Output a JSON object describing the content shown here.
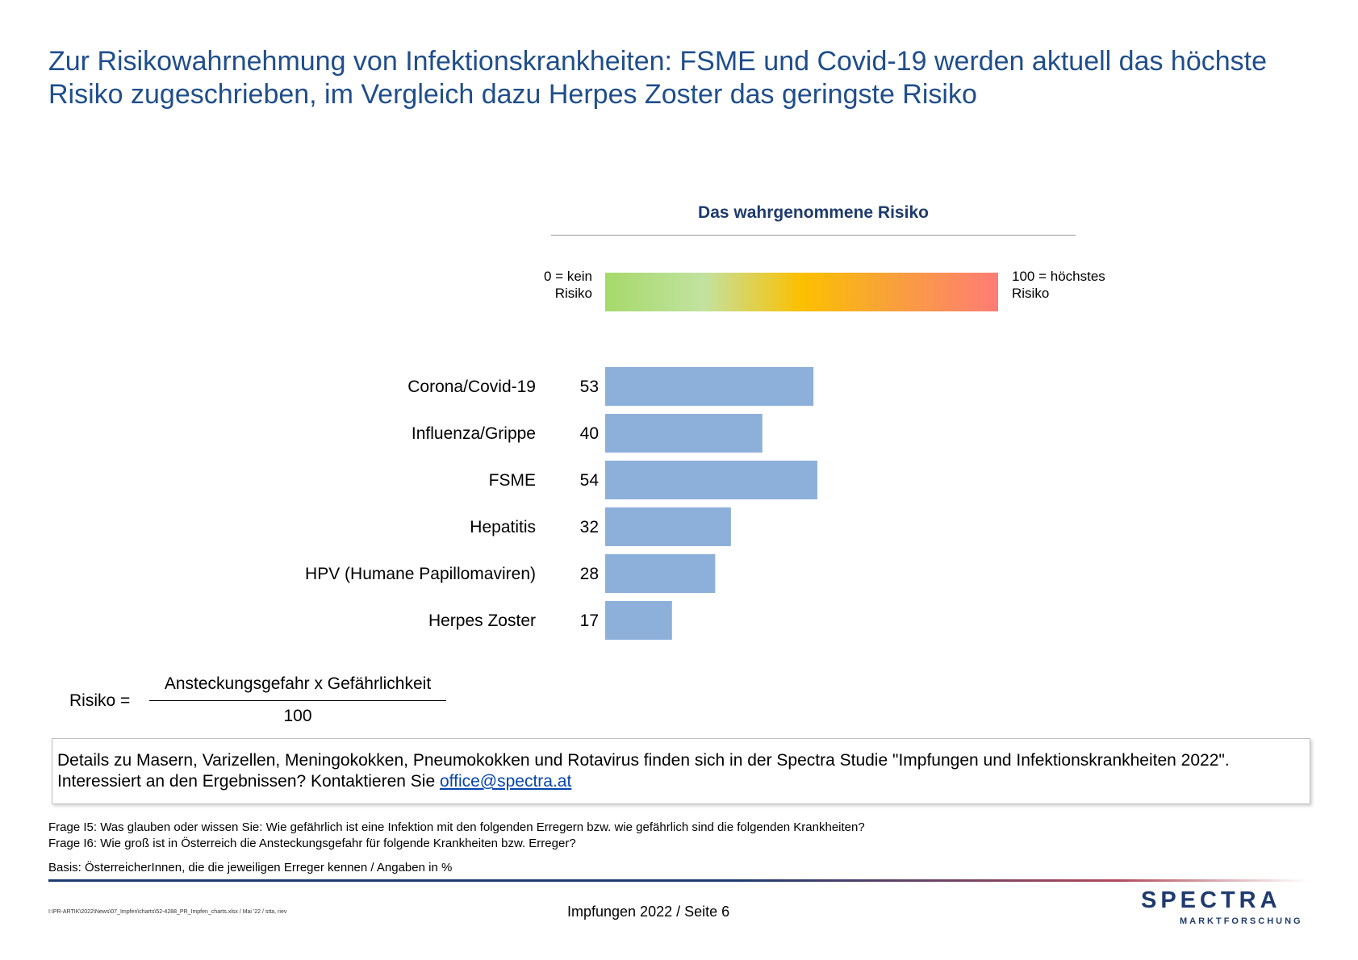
{
  "title": "Zur Risikowahrnehmung von Infektionskrankheiten: FSME und Covid-19 werden aktuell das höchste Risiko zugeschrieben, im Vergleich dazu Herpes Zoster das geringste Risiko",
  "scale": {
    "left_label": "0 = kein Risiko",
    "right_label": "100 = höchstes Risiko",
    "colors": [
      "#a6d96a",
      "#c2e2a0",
      "#fcc000",
      "#f8a534",
      "#ff7c76"
    ]
  },
  "chart_data": {
    "type": "bar",
    "orientation": "horizontal",
    "title": "Das wahrgenommene Risiko",
    "categories": [
      "Corona/Covid-19",
      "Influenza/Grippe",
      "FSME",
      "Hepatitis",
      "HPV (Humane Papillomaviren)",
      "Herpes Zoster"
    ],
    "values": [
      53,
      40,
      54,
      32,
      28,
      17
    ],
    "xlim": [
      0,
      100
    ],
    "bar_color": "#8db0db",
    "grid": false
  },
  "formula": {
    "label": "Risiko =",
    "numerator": "Ansteckungsgefahr x Gefährlichkeit",
    "denominator": "100"
  },
  "note": {
    "line1": "Details zu Masern, Varizellen, Meningokokken, Pneumokokken und Rotavirus finden sich in der Spectra Studie \"Impfungen und Infektionskrankheiten 2022\".",
    "line2_prefix": "Interessiert an den Ergebnissen? Kontaktieren Sie ",
    "email": "office@spectra.at"
  },
  "footnotes": {
    "q1": "Frage I5: Was glauben oder wissen Sie: Wie gefährlich ist eine Infektion mit den folgenden Erregern bzw. wie gefährlich sind die folgenden Krankheiten?",
    "q2": "Frage I6: Wie groß ist in Österreich die Ansteckungsgefahr für folgende Krankheiten bzw. Erreger?",
    "basis": "Basis: ÖsterreicherInnen, die die jeweiligen Erreger kennen / Angaben in %"
  },
  "footer": {
    "path": "I:\\PR-ARTIK\\2022\\News\\07_Impfen\\charts\\52-4288_PR_Impfen_charts.xlsx / Mai '22 / stta, riev",
    "page": "Impfungen 2022  /  Seite  6",
    "logo": "SPECTRA",
    "logo_sub": "MARKTFORSCHUNG"
  }
}
